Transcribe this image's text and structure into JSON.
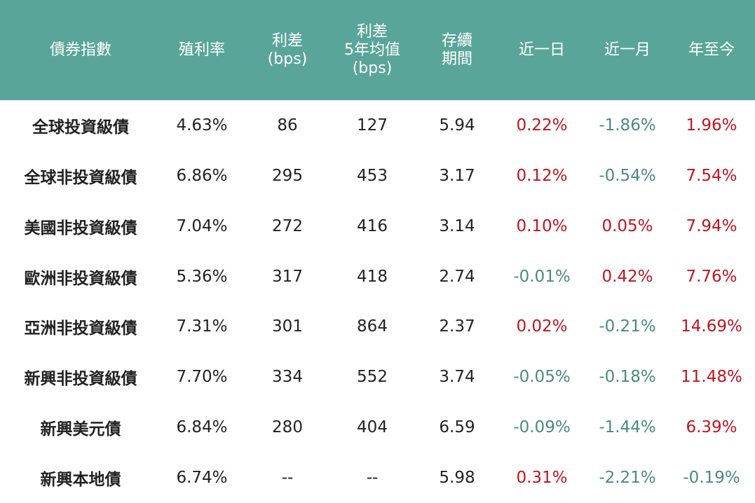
{
  "table": {
    "header": [
      [
        "債券指數"
      ],
      [
        "殖利率"
      ],
      [
        "利差",
        "(bps)"
      ],
      [
        "利差",
        "5年均值",
        "(bps)"
      ],
      [
        "存續",
        "期間"
      ],
      [
        "近一日"
      ],
      [
        "近一月"
      ],
      [
        "年至今"
      ]
    ],
    "rows": [
      [
        "全球投資級債",
        "4.63%",
        "86",
        "127",
        "5.94",
        "0.22%",
        "-1.86%",
        "1.96%"
      ],
      [
        "全球非投資級債",
        "6.86%",
        "295",
        "453",
        "3.17",
        "0.12%",
        "-0.54%",
        "7.54%"
      ],
      [
        "美國非投資級債",
        "7.04%",
        "272",
        "416",
        "3.14",
        "0.10%",
        "0.05%",
        "7.94%"
      ],
      [
        "歐洲非投資級債",
        "5.36%",
        "317",
        "418",
        "2.74",
        "-0.01%",
        "0.42%",
        "7.76%"
      ],
      [
        "亞洲非投資級債",
        "7.31%",
        "301",
        "864",
        "2.37",
        "0.02%",
        "-0.21%",
        "14.69%"
      ],
      [
        "新興非投資級債",
        "7.70%",
        "334",
        "552",
        "3.74",
        "-0.05%",
        "-0.18%",
        "11.48%"
      ],
      [
        "新興美元債",
        "6.84%",
        "280",
        "404",
        "6.59",
        "-0.09%",
        "-1.44%",
        "6.39%"
      ],
      [
        "新興本地債",
        "6.74%",
        "--",
        "--",
        "5.98",
        "0.31%",
        "-2.21%",
        "-0.19%"
      ]
    ]
  }
}
